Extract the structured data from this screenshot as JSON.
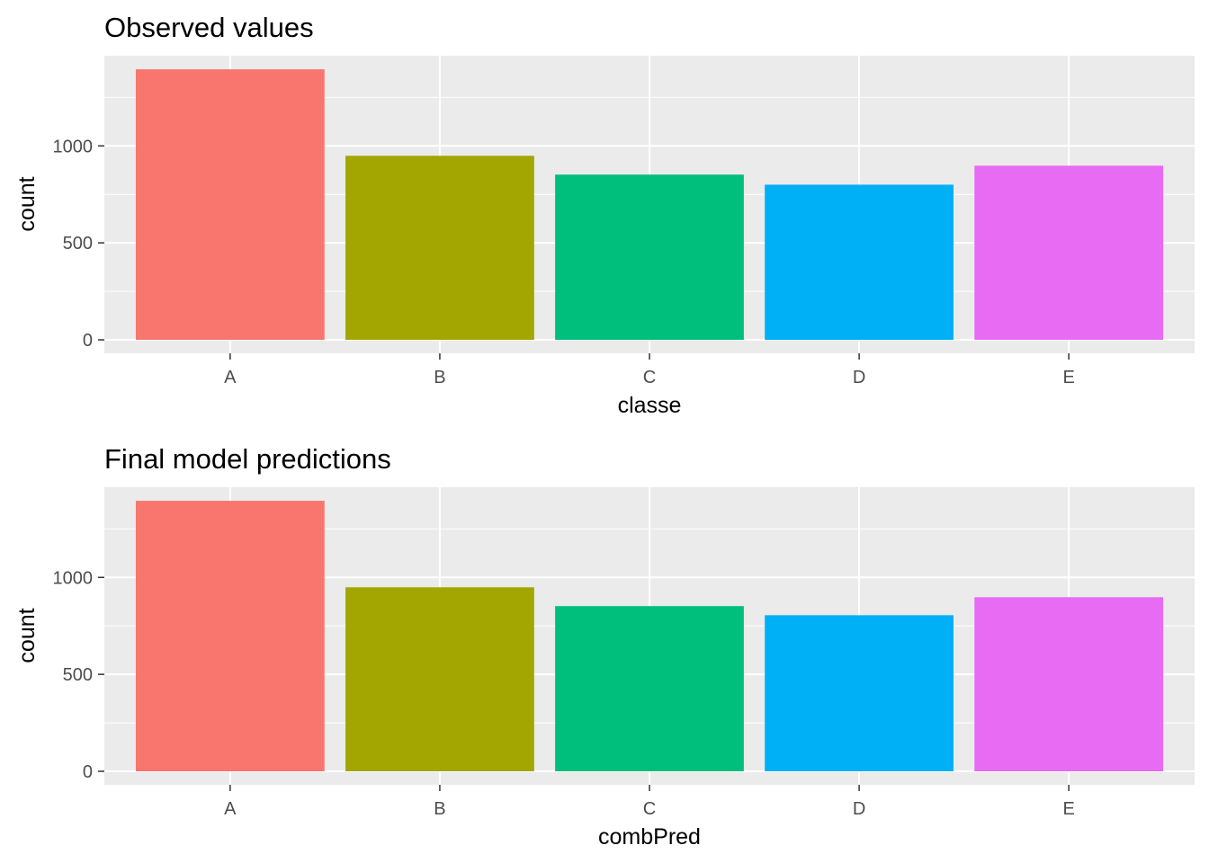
{
  "chart_data": [
    {
      "type": "bar",
      "title": "Observed values",
      "xlabel": "classe",
      "ylabel": "count",
      "categories": [
        "A",
        "B",
        "C",
        "D",
        "E"
      ],
      "values": [
        1395,
        949,
        852,
        800,
        898
      ],
      "colors": [
        "#F8766D",
        "#A3A500",
        "#00BF7D",
        "#00B0F6",
        "#E76BF3"
      ],
      "ylim": [
        0,
        1465
      ],
      "yticks": [
        0,
        500,
        1000
      ],
      "grid": true,
      "legend": "none"
    },
    {
      "type": "bar",
      "title": "Final model predictions",
      "xlabel": "combPred",
      "ylabel": "count",
      "categories": [
        "A",
        "B",
        "C",
        "D",
        "E"
      ],
      "values": [
        1395,
        949,
        852,
        805,
        898
      ],
      "colors": [
        "#F8766D",
        "#A3A500",
        "#00BF7D",
        "#00B0F6",
        "#E76BF3"
      ],
      "ylim": [
        0,
        1465
      ],
      "yticks": [
        0,
        500,
        1000
      ],
      "grid": true,
      "legend": "none"
    }
  ]
}
